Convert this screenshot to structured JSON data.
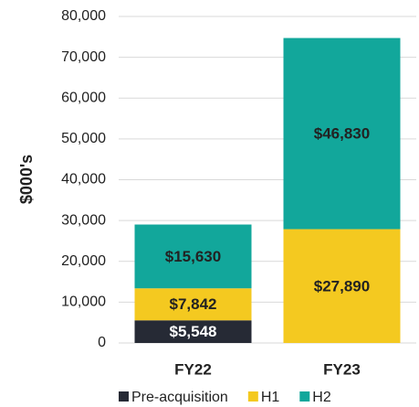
{
  "chart_data": {
    "type": "stacked_bar",
    "y_label": "$000's",
    "categories": [
      "FY22",
      "FY23"
    ],
    "series": [
      {
        "name": "Pre-acquisition",
        "color": "#262a35",
        "values": [
          5548,
          null
        ],
        "value_labels": [
          "$5,548",
          null
        ]
      },
      {
        "name": "H1",
        "color": "#f4c920",
        "values": [
          7842,
          27890
        ],
        "value_labels": [
          "$7,842",
          "$27,890"
        ]
      },
      {
        "name": "H2",
        "color": "#12a79b",
        "values": [
          15630,
          46830
        ],
        "value_labels": [
          "$15,630",
          "$46,830"
        ]
      }
    ],
    "ylim": [
      0,
      80000
    ],
    "yticks": [
      0,
      {
        "value": 10000,
        "label": "10,000"
      },
      {
        "value": 20000,
        "label": "20,000"
      },
      {
        "value": 30000,
        "label": "30,000"
      },
      {
        "value": 40000,
        "label": "40,000"
      },
      {
        "value": 50000,
        "label": "50,000"
      },
      {
        "value": 60000,
        "label": "60,000"
      },
      {
        "value": 70000,
        "label": "70,000"
      },
      {
        "value": 80000,
        "label": "80,000"
      }
    ],
    "grid": true
  }
}
